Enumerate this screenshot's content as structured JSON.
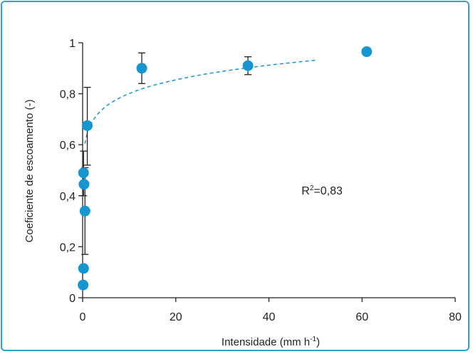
{
  "chart_data": {
    "type": "scatter",
    "xlabel": "Intensidade (mm h",
    "xlabel_sup": "-1",
    "xlabel_end": ")",
    "ylabel": "Coeficiente de escoamento (-)",
    "xlim": [
      0,
      80
    ],
    "ylim": [
      0,
      1
    ],
    "x_ticks": [
      0,
      20,
      40,
      60,
      80
    ],
    "x_tick_labels": [
      "0",
      "20",
      "40",
      "60",
      "80"
    ],
    "y_ticks": [
      0,
      0.2,
      0.4,
      0.6,
      0.8,
      1
    ],
    "y_tick_labels": [
      "0",
      "0,2",
      "0,4",
      "0,6",
      "0,8",
      "1"
    ],
    "grid": false,
    "points": [
      {
        "x": 0.1,
        "y": 0.05
      },
      {
        "x": 0.2,
        "y": 0.115
      },
      {
        "x": 0.5,
        "y": 0.34,
        "err_low": 0.17,
        "err_high": 0.51
      },
      {
        "x": 0.3,
        "y": 0.445
      },
      {
        "x": 0.2,
        "y": 0.49,
        "err_low": 0.4,
        "err_high": 0.575
      },
      {
        "x": 1.0,
        "y": 0.675,
        "err_low": 0.52,
        "err_high": 0.825
      },
      {
        "x": 12.7,
        "y": 0.9,
        "err_low": 0.84,
        "err_high": 0.96
      },
      {
        "x": 35.5,
        "y": 0.91,
        "err_low": 0.875,
        "err_high": 0.945
      },
      {
        "x": 61.0,
        "y": 0.965
      }
    ],
    "fit": {
      "style": "dashed",
      "x_start": 0.5,
      "x_end": 50,
      "a": 0.645,
      "b": 0.0939
    },
    "annotation": {
      "prefix": "R",
      "sup": "2",
      "text": "=0,83",
      "x": 47,
      "y": 0.4
    },
    "colors": {
      "points": "#1596d0",
      "fit": "#1596d0",
      "frame": "#2aa6cf",
      "axis": "#222222"
    }
  }
}
